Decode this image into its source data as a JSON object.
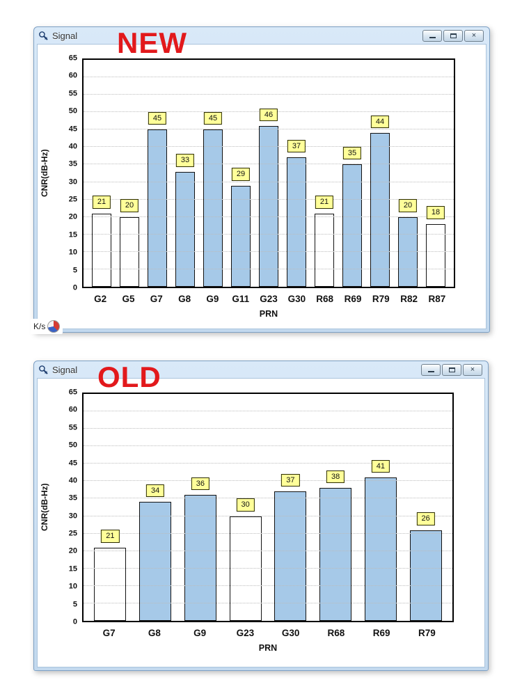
{
  "colors": {
    "blue": "#A6C9E8",
    "white": "#FFFFFF",
    "label_bg": "#FFFF99",
    "overlay_red": "#E2191C"
  },
  "windows": [
    {
      "title": "Signal",
      "overlay": "NEW",
      "controls": {
        "close": "×"
      }
    },
    {
      "title": "Signal",
      "overlay": "OLD",
      "controls": {
        "close": "×"
      }
    }
  ],
  "status": {
    "kps": "K/s"
  },
  "chart_data": [
    {
      "type": "bar",
      "title": "Signal (NEW)",
      "categories": [
        "G2",
        "G5",
        "G7",
        "G8",
        "G9",
        "G11",
        "G23",
        "G30",
        "R68",
        "R69",
        "R79",
        "R82",
        "R87"
      ],
      "values": [
        21,
        20,
        45,
        33,
        45,
        29,
        46,
        37,
        21,
        35,
        44,
        20,
        18
      ],
      "bar_fills": [
        "white",
        "white",
        "blue",
        "blue",
        "blue",
        "blue",
        "blue",
        "blue",
        "white",
        "blue",
        "blue",
        "blue",
        "white"
      ],
      "xlabel": "PRN",
      "ylabel": "CNR(dB-Hz)",
      "ylim": [
        0,
        65
      ],
      "ytick_step": 5,
      "grid": true,
      "value_labels": true,
      "legend": "none"
    },
    {
      "type": "bar",
      "title": "Signal (OLD)",
      "categories": [
        "G7",
        "G8",
        "G9",
        "G23",
        "G30",
        "R68",
        "R69",
        "R79"
      ],
      "values": [
        21,
        34,
        36,
        30,
        37,
        38,
        41,
        26
      ],
      "bar_fills": [
        "white",
        "blue",
        "blue",
        "white",
        "blue",
        "blue",
        "blue",
        "blue"
      ],
      "xlabel": "PRN",
      "ylabel": "CNR(dB-Hz)",
      "ylim": [
        0,
        65
      ],
      "ytick_step": 5,
      "grid": true,
      "value_labels": true,
      "legend": "none"
    }
  ]
}
